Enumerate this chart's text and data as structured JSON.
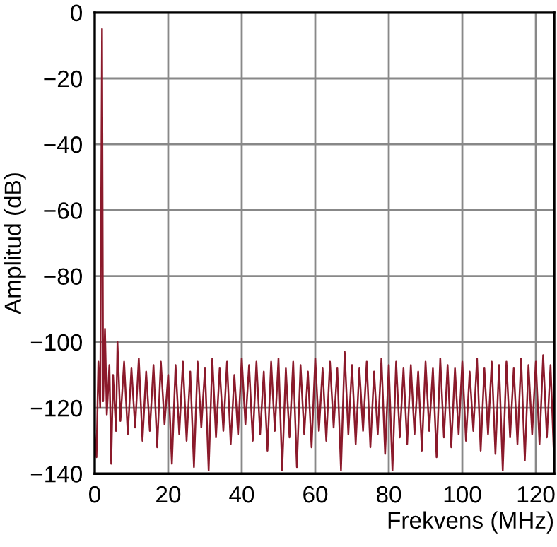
{
  "chart_data": {
    "type": "line",
    "xlabel": "Frekvens (MHz)",
    "ylabel": "Amplitud (dB)",
    "xlim": [
      0,
      125
    ],
    "xticks": [
      0,
      20,
      40,
      60,
      80,
      100,
      120
    ],
    "ylim": [
      -140,
      0
    ],
    "yticks": [
      -140,
      -120,
      -100,
      -80,
      -60,
      -40,
      -20,
      0
    ],
    "grid": true,
    "marker": "none",
    "line_style": "solid",
    "series": [
      {
        "color": "#8b1a2b",
        "x": [
          0,
          0.5,
          1,
          1.5,
          2,
          2.3,
          2.8,
          3.3,
          4,
          4.5,
          5,
          5.8,
          6.2,
          7,
          8,
          9,
          10,
          11,
          12,
          13,
          14,
          15,
          16,
          17,
          18,
          19,
          20,
          21,
          22,
          23,
          24,
          25,
          26,
          27,
          28,
          29,
          30,
          31,
          32,
          33,
          34,
          35,
          36,
          37,
          38,
          39,
          40,
          41,
          42,
          43,
          44,
          45,
          46,
          47,
          48,
          49,
          50,
          51,
          52,
          53,
          54,
          55,
          56,
          57,
          58,
          59,
          60,
          61,
          62,
          63,
          64,
          65,
          66,
          67,
          68,
          69,
          70,
          71,
          72,
          73,
          74,
          75,
          76,
          77,
          78,
          79,
          80,
          81,
          82,
          83,
          84,
          85,
          86,
          87,
          88,
          89,
          90,
          91,
          92,
          93,
          94,
          95,
          96,
          97,
          98,
          99,
          100,
          101,
          102,
          103,
          104,
          105,
          106,
          107,
          108,
          109,
          110,
          111,
          112,
          113,
          114,
          115,
          116,
          117,
          118,
          119,
          120,
          121,
          122,
          123,
          124,
          125
        ],
        "values": [
          -128,
          -135,
          -106,
          -120,
          -5,
          -118,
          -96,
          -122,
          -107,
          -137,
          -110,
          -127,
          -100,
          -124,
          -106,
          -128,
          -108,
          -126,
          -105,
          -130,
          -109,
          -127,
          -107,
          -132,
          -106,
          -125,
          -110,
          -137,
          -107,
          -128,
          -106,
          -130,
          -109,
          -138,
          -106,
          -126,
          -108,
          -139,
          -105,
          -129,
          -108,
          -127,
          -106,
          -131,
          -110,
          -128,
          -105,
          -125,
          -107,
          -130,
          -106,
          -128,
          -109,
          -133,
          -106,
          -127,
          -105,
          -139,
          -108,
          -129,
          -106,
          -138,
          -107,
          -128,
          -109,
          -132,
          -105,
          -127,
          -108,
          -130,
          -106,
          -126,
          -108,
          -139,
          -103,
          -128,
          -107,
          -131,
          -108,
          -127,
          -106,
          -132,
          -109,
          -128,
          -105,
          -134,
          -107,
          -139,
          -106,
          -129,
          -108,
          -131,
          -107,
          -128,
          -109,
          -133,
          -106,
          -127,
          -108,
          -135,
          -105,
          -129,
          -107,
          -132,
          -108,
          -128,
          -106,
          -130,
          -109,
          -127,
          -105,
          -133,
          -108,
          -128,
          -106,
          -134,
          -107,
          -139,
          -106,
          -129,
          -108,
          -131,
          -105,
          -136,
          -107,
          -128,
          -106,
          -131,
          -104,
          -129,
          -107,
          -137
        ]
      }
    ]
  }
}
